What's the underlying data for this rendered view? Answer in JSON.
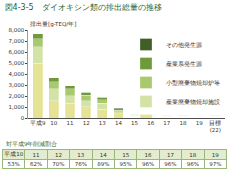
{
  "chart_data": {
    "type": "bar",
    "stacked": true,
    "title": "図4-3-5　ダイオキシン類の排出総量の推移",
    "y_label": "排出量[g-TEQ/年]",
    "categories": [
      "平成9",
      "10",
      "11",
      "12",
      "13",
      "14",
      "15",
      "16",
      "17",
      "18",
      "19",
      "目標(22)"
    ],
    "series": [
      {
        "name": "一般廃棄物焼却施設",
        "color": "#e6e394",
        "values": [
          5000,
          1550,
          1350,
          1019,
          812,
          370,
          71,
          64,
          62,
          54,
          52,
          51
        ]
      },
      {
        "name": "産業廃棄物焼却施設",
        "color": "#d3e3a6",
        "values": [
          1500,
          1100,
          690,
          555,
          533,
          200,
          75,
          70,
          73,
          65,
          60,
          50
        ]
      },
      {
        "name": "小型廃棄物焼却炉等",
        "color": "#a9c96e",
        "values": [
          700,
          650,
          600,
          500,
          300,
          120,
          70,
          60,
          50,
          48,
          45,
          80
        ]
      },
      {
        "name": "産業系発生源",
        "color": "#6f9a3c",
        "values": [
          470,
          340,
          300,
          260,
          220,
          170,
          150,
          140,
          120,
          110,
          100,
          130
        ]
      },
      {
        "name": "その他発生源",
        "color": "#3f5f25",
        "values": [
          5,
          5,
          5,
          5,
          5,
          5,
          5,
          5,
          5,
          5,
          5,
          5
        ]
      }
    ],
    "ylim": [
      0,
      8000
    ],
    "yticks": [
      0,
      {
        "value": 1000,
        "label": "1,000"
      },
      {
        "value": 2000,
        "label": "2,000"
      },
      {
        "value": 3000,
        "label": "3,000"
      },
      {
        "value": 4000,
        "label": "4,000"
      },
      {
        "value": 5000,
        "label": "5,000"
      },
      {
        "value": 6000,
        "label": "6,000"
      },
      {
        "value": 7000,
        "label": "7,000"
      },
      {
        "value": 8000,
        "label": "8,000"
      }
    ],
    "grid": false,
    "legend": "top-right",
    "table": {
      "title": "対平成9年削減割合",
      "header": [
        "平成10",
        "11",
        "12",
        "13",
        "14",
        "15",
        "16",
        "17",
        "18",
        "19"
      ],
      "row": [
        "53%",
        "62%",
        "70%",
        "76%",
        "89%",
        "95%",
        "96%",
        "96%",
        "96%",
        "97%"
      ]
    }
  }
}
